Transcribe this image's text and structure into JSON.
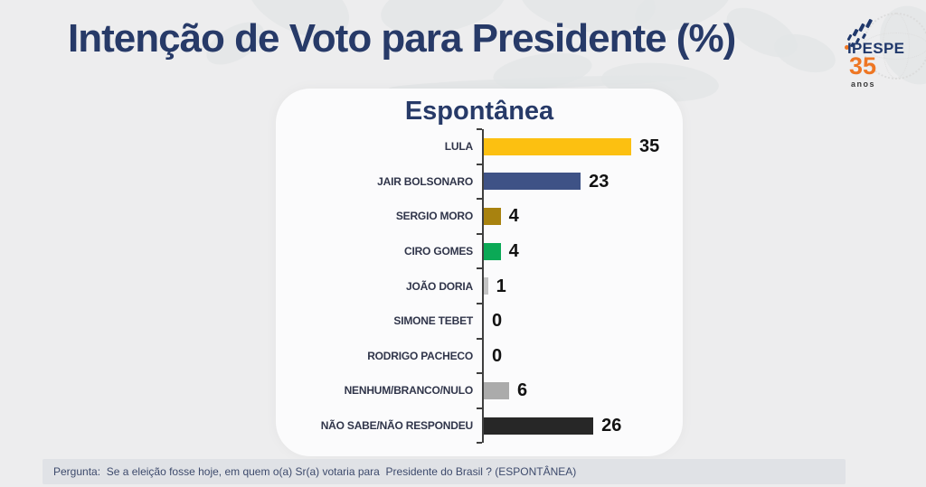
{
  "page": {
    "title": "Intenção de Voto para Presidente (%)",
    "question": "Pergunta:  Se a eleição fosse hoje, em quem o(a) Sr(a) votaria para  Presidente do Brasil ? (ESPONTÂNEA)"
  },
  "logo": {
    "brand": "IPESPE",
    "years": "35",
    "years_label": "anos",
    "colors": {
      "navy": "#20386B",
      "orange": "#EE7623"
    }
  },
  "chart_data": {
    "type": "bar",
    "orientation": "horizontal",
    "title": "Espontânea",
    "categories": [
      "LULA",
      "JAIR BOLSONARO",
      "SERGIO MORO",
      "CIRO GOMES",
      "JOÃO DORIA",
      "SIMONE TEBET",
      "RODRIGO PACHECO",
      "NENHUM/BRANCO/NULO",
      "NÃO SABE/NÃO RESPONDEU"
    ],
    "values": [
      35,
      23,
      4,
      4,
      1,
      0,
      0,
      6,
      26
    ],
    "bar_colors": [
      "#FCC011",
      "#3E5286",
      "#A8820F",
      "#0BA956",
      "#C4C4C4",
      "#C4C4C4",
      "#C4C4C4",
      "#ABABAB",
      "#272727"
    ],
    "value_labels_shown": true,
    "xlim": [
      0,
      38
    ],
    "grid": false,
    "legend": "none",
    "axis": "left vertical axis line with tick marks between categories",
    "title_color": "#273A68"
  }
}
